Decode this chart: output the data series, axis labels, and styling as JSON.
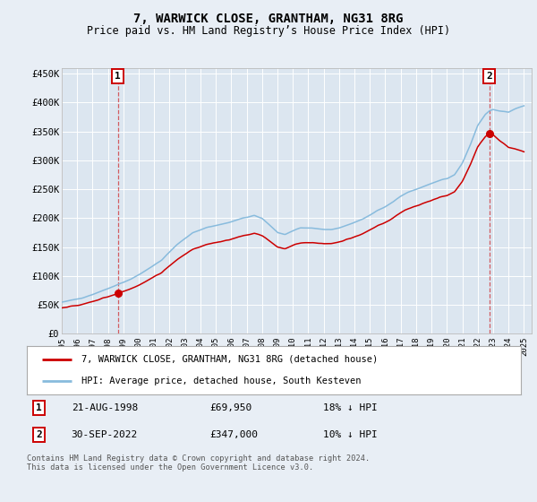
{
  "title": "7, WARWICK CLOSE, GRANTHAM, NG31 8RG",
  "subtitle": "Price paid vs. HM Land Registry’s House Price Index (HPI)",
  "bg_color": "#e8eef5",
  "plot_bg_color": "#dce6f0",
  "red_line_color": "#cc0000",
  "blue_line_color": "#88bbdd",
  "grid_color": "#ffffff",
  "ylim": [
    0,
    460000
  ],
  "yticks": [
    0,
    50000,
    100000,
    150000,
    200000,
    250000,
    300000,
    350000,
    400000,
    450000
  ],
  "ytick_labels": [
    "£0",
    "£50K",
    "£100K",
    "£150K",
    "£200K",
    "£250K",
    "£300K",
    "£350K",
    "£400K",
    "£450K"
  ],
  "xmin": 1995,
  "xmax": 2025,
  "point1_year": 1998.64,
  "point1_price": 69950,
  "point2_year": 2022.75,
  "point2_price": 347000,
  "legend_line1": "7, WARWICK CLOSE, GRANTHAM, NG31 8RG (detached house)",
  "legend_line2": "HPI: Average price, detached house, South Kesteven",
  "table_rows": [
    {
      "num": "1",
      "date": "21-AUG-1998",
      "price": "£69,950",
      "rel": "18% ↓ HPI"
    },
    {
      "num": "2",
      "date": "30-SEP-2022",
      "price": "£347,000",
      "rel": "10% ↓ HPI"
    }
  ],
  "footer": "Contains HM Land Registry data © Crown copyright and database right 2024.\nThis data is licensed under the Open Government Licence v3.0."
}
